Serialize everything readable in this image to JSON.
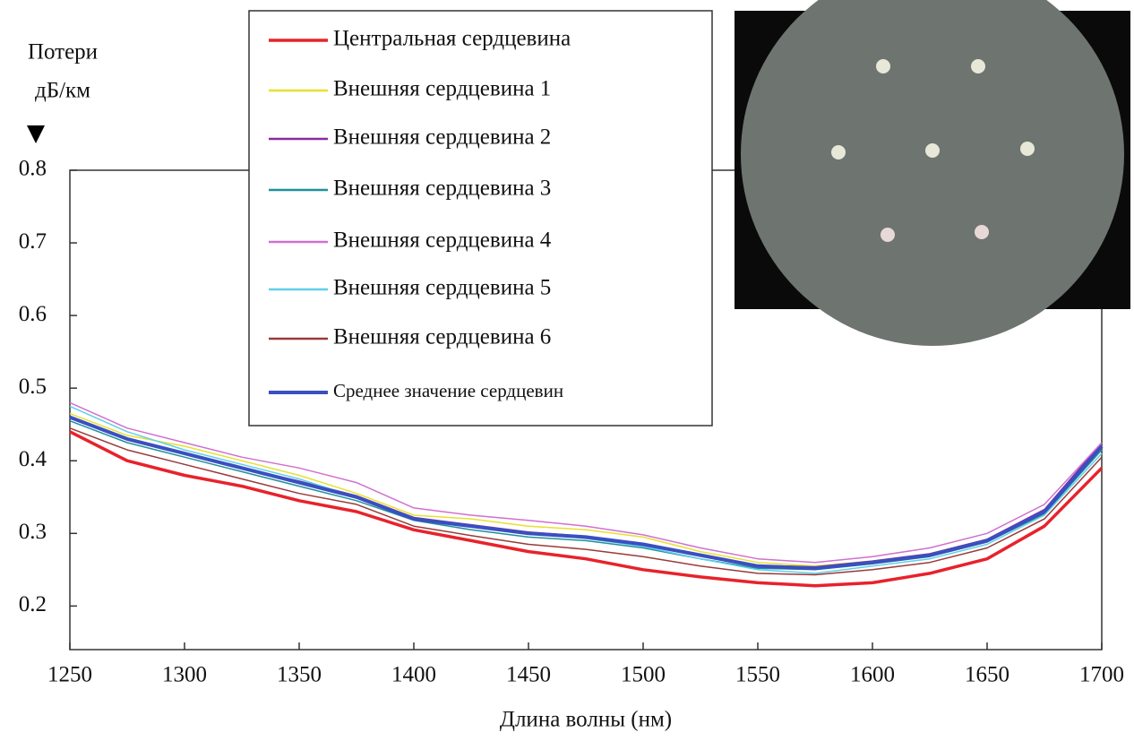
{
  "chart_data": {
    "type": "line",
    "y_label_lines": [
      "Потери",
      "дБ/км"
    ],
    "x_label": "Длина волны (нм)",
    "x": [
      1250,
      1275,
      1300,
      1325,
      1350,
      1375,
      1400,
      1425,
      1450,
      1475,
      1500,
      1525,
      1550,
      1575,
      1600,
      1625,
      1650,
      1675,
      1700
    ],
    "xlim": [
      1250,
      1700
    ],
    "xticks": [
      1250,
      1300,
      1350,
      1400,
      1450,
      1500,
      1550,
      1600,
      1650,
      1700
    ],
    "ylim": [
      0.14,
      0.8
    ],
    "yticks": [
      0.2,
      0.3,
      0.4,
      0.5,
      0.6,
      0.7,
      0.8
    ],
    "grid": false,
    "series": [
      {
        "name": "Центральная сердцевина",
        "color": "#e8222b",
        "line_width": 3.5,
        "values": [
          0.44,
          0.4,
          0.38,
          0.365,
          0.345,
          0.33,
          0.305,
          0.29,
          0.275,
          0.265,
          0.25,
          0.24,
          0.232,
          0.228,
          0.232,
          0.245,
          0.265,
          0.31,
          0.39
        ]
      },
      {
        "name": "Внешняя сердцевина 1",
        "color": "#e8e030",
        "line_width": 1.5,
        "values": [
          0.465,
          0.435,
          0.42,
          0.4,
          0.38,
          0.355,
          0.325,
          0.32,
          0.31,
          0.305,
          0.295,
          0.275,
          0.26,
          0.255,
          0.262,
          0.272,
          0.292,
          0.33,
          0.42
        ]
      },
      {
        "name": "Внешняя сердцевина 2",
        "color": "#8a2aa0",
        "line_width": 1.5,
        "values": [
          0.46,
          0.43,
          0.41,
          0.39,
          0.372,
          0.352,
          0.322,
          0.312,
          0.302,
          0.296,
          0.285,
          0.27,
          0.256,
          0.254,
          0.262,
          0.272,
          0.292,
          0.333,
          0.425
        ]
      },
      {
        "name": "Внешняя сердцевина 3",
        "color": "#20909a",
        "line_width": 1.5,
        "values": [
          0.455,
          0.425,
          0.405,
          0.385,
          0.365,
          0.345,
          0.318,
          0.305,
          0.295,
          0.29,
          0.28,
          0.265,
          0.252,
          0.25,
          0.258,
          0.268,
          0.288,
          0.327,
          0.415
        ]
      },
      {
        "name": "Внешняя сердцевина 4",
        "color": "#d070d0",
        "line_width": 1.5,
        "values": [
          0.48,
          0.445,
          0.425,
          0.405,
          0.39,
          0.37,
          0.335,
          0.325,
          0.318,
          0.31,
          0.298,
          0.28,
          0.265,
          0.26,
          0.268,
          0.28,
          0.3,
          0.34,
          0.425
        ]
      },
      {
        "name": "Внешняя сердцевина 5",
        "color": "#60d0e8",
        "line_width": 1.5,
        "values": [
          0.475,
          0.44,
          0.415,
          0.395,
          0.375,
          0.35,
          0.32,
          0.31,
          0.3,
          0.293,
          0.282,
          0.265,
          0.25,
          0.245,
          0.255,
          0.265,
          0.285,
          0.325,
          0.41
        ]
      },
      {
        "name": "Внешняя сердцевина 6",
        "color": "#9a3a3a",
        "line_width": 1.5,
        "values": [
          0.445,
          0.415,
          0.395,
          0.375,
          0.355,
          0.34,
          0.31,
          0.297,
          0.285,
          0.278,
          0.268,
          0.255,
          0.245,
          0.243,
          0.25,
          0.26,
          0.28,
          0.32,
          0.405
        ]
      },
      {
        "name": "Среднее значение сердцевин",
        "color": "#3a4fc0",
        "line_width": 4,
        "values": [
          0.46,
          0.43,
          0.41,
          0.39,
          0.37,
          0.35,
          0.32,
          0.31,
          0.3,
          0.295,
          0.285,
          0.27,
          0.255,
          0.252,
          0.26,
          0.27,
          0.29,
          0.33,
          0.42
        ]
      }
    ]
  }
}
